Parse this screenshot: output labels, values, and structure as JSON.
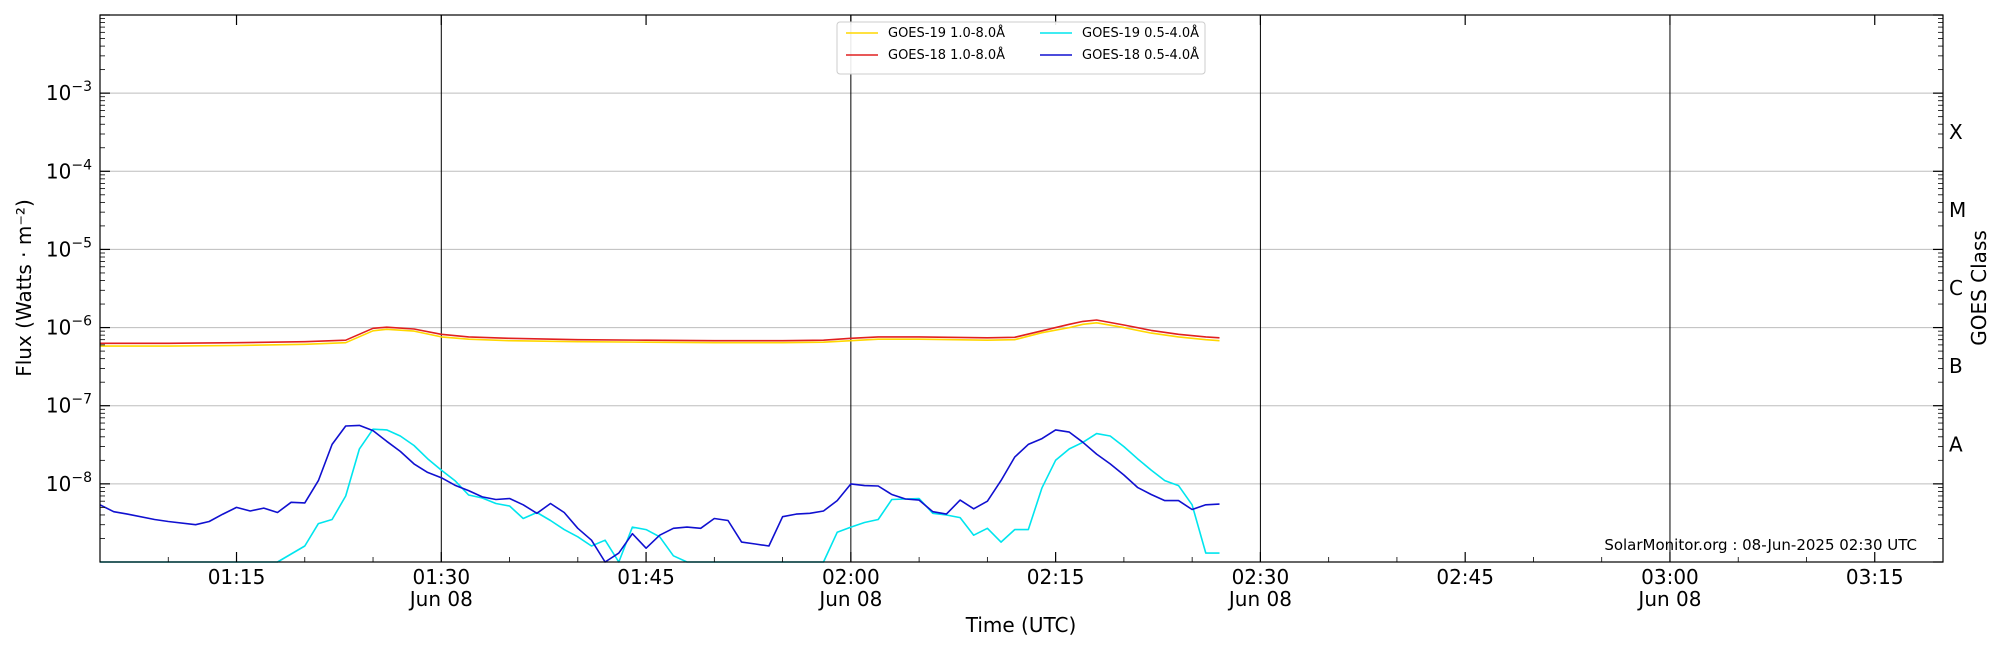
{
  "chart_data": {
    "type": "line",
    "xlabel": "Time (UTC)",
    "ylabel": "Flux (Watts · m⁻²)",
    "y2label": "GOES Class",
    "yscale": "log",
    "xlim": [
      "01:05",
      "03:20"
    ],
    "ylim": [
      1e-09,
      0.01
    ],
    "grid": "horizontal",
    "legend_position": "top-center",
    "x_ticks": [
      {
        "time": "01:15",
        "label": "01:15",
        "sub": ""
      },
      {
        "time": "01:30",
        "label": "01:30",
        "sub": "Jun 08"
      },
      {
        "time": "01:45",
        "label": "01:45",
        "sub": ""
      },
      {
        "time": "02:00",
        "label": "02:00",
        "sub": "Jun 08"
      },
      {
        "time": "02:15",
        "label": "02:15",
        "sub": ""
      },
      {
        "time": "02:30",
        "label": "02:30",
        "sub": "Jun 08"
      },
      {
        "time": "02:45",
        "label": "02:45",
        "sub": ""
      },
      {
        "time": "03:00",
        "label": "03:00",
        "sub": "Jun 08"
      },
      {
        "time": "03:15",
        "label": "03:15",
        "sub": ""
      }
    ],
    "vertical_lines": [
      "01:30",
      "02:00",
      "02:30",
      "03:00"
    ],
    "y_ticks": [
      {
        "value": 0.001,
        "base": "10",
        "exp": "−3"
      },
      {
        "value": 0.0001,
        "base": "10",
        "exp": "−4"
      },
      {
        "value": 1e-05,
        "base": "10",
        "exp": "−5"
      },
      {
        "value": 1e-06,
        "base": "10",
        "exp": "−6"
      },
      {
        "value": 1e-07,
        "base": "10",
        "exp": "−7"
      },
      {
        "value": 1e-08,
        "base": "10",
        "exp": "−8"
      }
    ],
    "goes_classes": [
      {
        "label": "X",
        "value": 0.00032
      },
      {
        "label": "M",
        "value": 3.2e-05
      },
      {
        "label": "C",
        "value": 3.2e-06
      },
      {
        "label": "B",
        "value": 3.2e-07
      },
      {
        "label": "A",
        "value": 3.2e-08
      }
    ],
    "series": [
      {
        "name": "GOES-19 1.0-8.0Å",
        "color": "#FFD700",
        "x": [
          "01:05",
          "01:10",
          "01:15",
          "01:20",
          "01:23",
          "01:25",
          "01:26",
          "01:28",
          "01:30",
          "01:32",
          "01:35",
          "01:40",
          "01:45",
          "01:50",
          "01:55",
          "01:58",
          "02:00",
          "02:02",
          "02:05",
          "02:10",
          "02:12",
          "02:14",
          "02:16",
          "02:17",
          "02:18",
          "02:20",
          "02:22",
          "02:24",
          "02:26",
          "02:27"
        ],
        "values": [
          5.8e-07,
          5.8e-07,
          5.9e-07,
          6.1e-07,
          6.4e-07,
          9.1e-07,
          9.5e-07,
          9e-07,
          7.6e-07,
          7.1e-07,
          6.8e-07,
          6.6e-07,
          6.5e-07,
          6.4e-07,
          6.4e-07,
          6.5e-07,
          6.8e-07,
          7.1e-07,
          7.1e-07,
          6.9e-07,
          7e-07,
          8.6e-07,
          1e-06,
          1.1e-06,
          1.15e-06,
          1e-06,
          8.5e-07,
          7.6e-07,
          7e-07,
          6.8e-07
        ]
      },
      {
        "name": "GOES-18 1.0-8.0Å",
        "color": "#E02020",
        "x": [
          "01:05",
          "01:10",
          "01:15",
          "01:20",
          "01:23",
          "01:25",
          "01:26",
          "01:28",
          "01:30",
          "01:32",
          "01:35",
          "01:40",
          "01:45",
          "01:50",
          "01:55",
          "01:58",
          "02:00",
          "02:02",
          "02:05",
          "02:10",
          "02:12",
          "02:14",
          "02:16",
          "02:17",
          "02:18",
          "02:20",
          "02:22",
          "02:24",
          "02:26",
          "02:27"
        ],
        "values": [
          6.3e-07,
          6.3e-07,
          6.4e-07,
          6.6e-07,
          6.9e-07,
          9.8e-07,
          1.01e-06,
          9.6e-07,
          8.2e-07,
          7.6e-07,
          7.3e-07,
          7e-07,
          6.9e-07,
          6.8e-07,
          6.8e-07,
          6.9e-07,
          7.3e-07,
          7.6e-07,
          7.6e-07,
          7.4e-07,
          7.5e-07,
          9.1e-07,
          1.1e-06,
          1.2e-06,
          1.25e-06,
          1.08e-06,
          9.2e-07,
          8.2e-07,
          7.6e-07,
          7.4e-07
        ]
      },
      {
        "name": "GOES-19 0.5-4.0Å",
        "color": "#00E5EE",
        "x": [
          "01:05",
          "01:10",
          "01:15",
          "01:18",
          "01:20",
          "01:21",
          "01:22",
          "01:23",
          "01:24",
          "01:25",
          "01:26",
          "01:27",
          "01:28",
          "01:29",
          "01:30",
          "01:31",
          "01:32",
          "01:33",
          "01:34",
          "01:35",
          "01:36",
          "01:37",
          "01:38",
          "01:39",
          "01:40",
          "01:41",
          "01:42",
          "01:43",
          "01:44",
          "01:45",
          "01:46",
          "01:47",
          "01:48",
          "01:49",
          "01:50",
          "01:55",
          "01:58",
          "01:59",
          "02:00",
          "02:01",
          "02:02",
          "02:03",
          "02:04",
          "02:05",
          "02:06",
          "02:07",
          "02:08",
          "02:09",
          "02:10",
          "02:11",
          "02:12",
          "02:13",
          "02:14",
          "02:15",
          "02:16",
          "02:17",
          "02:18",
          "02:19",
          "02:20",
          "02:21",
          "02:22",
          "02:23",
          "02:24",
          "02:25",
          "02:26",
          "02:27"
        ],
        "values": [
          1e-09,
          1e-09,
          1e-09,
          1e-09,
          1.6e-09,
          3.1e-09,
          3.5e-09,
          7e-09,
          2.8e-08,
          5e-08,
          4.9e-08,
          4.1e-08,
          3.1e-08,
          2.1e-08,
          1.5e-08,
          1.1e-08,
          7.2e-09,
          6.6e-09,
          5.6e-09,
          5.2e-09,
          3.6e-09,
          4.3e-09,
          3.4e-09,
          2.6e-09,
          2.1e-09,
          1.6e-09,
          1.9e-09,
          1e-09,
          2.8e-09,
          2.6e-09,
          2.1e-09,
          1.2e-09,
          1e-09,
          1e-09,
          1e-09,
          1e-09,
          1e-09,
          2.4e-09,
          2.8e-09,
          3.2e-09,
          3.5e-09,
          6.3e-09,
          6.4e-09,
          6.5e-09,
          4.2e-09,
          4e-09,
          3.7e-09,
          2.2e-09,
          2.7e-09,
          1.8e-09,
          2.6e-09,
          2.6e-09,
          8.9e-09,
          2e-08,
          2.8e-08,
          3.4e-08,
          4.4e-08,
          4.1e-08,
          3e-08,
          2.1e-08,
          1.5e-08,
          1.1e-08,
          9.5e-09,
          5.4e-09,
          1.3e-09,
          1.3e-09
        ]
      },
      {
        "name": "GOES-18 0.5-4.0Å",
        "color": "#1010D0",
        "x": [
          "01:05",
          "01:06",
          "01:07",
          "01:09",
          "01:10",
          "01:12",
          "01:13",
          "01:14",
          "01:15",
          "01:16",
          "01:17",
          "01:18",
          "01:19",
          "01:20",
          "01:21",
          "01:22",
          "01:23",
          "01:24",
          "01:25",
          "01:26",
          "01:27",
          "01:28",
          "01:29",
          "01:30",
          "01:31",
          "01:32",
          "01:33",
          "01:34",
          "01:35",
          "01:36",
          "01:37",
          "01:38",
          "01:39",
          "01:40",
          "01:41",
          "01:42",
          "01:43",
          "01:44",
          "01:45",
          "01:46",
          "01:47",
          "01:48",
          "01:49",
          "01:50",
          "01:51",
          "01:52",
          "01:53",
          "01:54",
          "01:55",
          "01:56",
          "01:57",
          "01:58",
          "01:59",
          "02:00",
          "02:01",
          "02:02",
          "02:03",
          "02:04",
          "02:05",
          "02:06",
          "02:07",
          "02:08",
          "02:09",
          "02:10",
          "02:11",
          "02:12",
          "02:13",
          "02:14",
          "02:15",
          "02:16",
          "02:17",
          "02:18",
          "02:19",
          "02:20",
          "02:21",
          "02:22",
          "02:23",
          "02:24",
          "02:25",
          "02:26",
          "02:27"
        ],
        "values": [
          5.4e-09,
          4.4e-09,
          4.1e-09,
          3.5e-09,
          3.3e-09,
          3e-09,
          3.3e-09,
          4.1e-09,
          5e-09,
          4.5e-09,
          4.9e-09,
          4.3e-09,
          5.8e-09,
          5.7e-09,
          1.1e-08,
          3.2e-08,
          5.5e-08,
          5.6e-08,
          4.8e-08,
          3.5e-08,
          2.6e-08,
          1.8e-08,
          1.4e-08,
          1.2e-08,
          9.6e-09,
          8.2e-09,
          6.8e-09,
          6.3e-09,
          6.5e-09,
          5.4e-09,
          4.2e-09,
          5.6e-09,
          4.3e-09,
          2.7e-09,
          1.9e-09,
          1e-09,
          1.3e-09,
          2.3e-09,
          1.5e-09,
          2.2e-09,
          2.7e-09,
          2.8e-09,
          2.7e-09,
          3.6e-09,
          3.4e-09,
          1.8e-09,
          1.7e-09,
          1.6e-09,
          3.8e-09,
          4.1e-09,
          4.2e-09,
          4.5e-09,
          6.1e-09,
          1e-08,
          9.5e-09,
          9.4e-09,
          7.3e-09,
          6.4e-09,
          6.2e-09,
          4.4e-09,
          4.1e-09,
          6.2e-09,
          4.8e-09,
          6e-09,
          1.1e-08,
          2.2e-08,
          3.2e-08,
          3.8e-08,
          4.9e-08,
          4.6e-08,
          3.4e-08,
          2.4e-08,
          1.8e-08,
          1.3e-08,
          9e-09,
          7.3e-09,
          6.1e-09,
          6.1e-09,
          4.7e-09,
          5.4e-09,
          5.5e-09
        ]
      }
    ],
    "annotation": "SolarMonitor.org : 08-Jun-2025 02:30 UTC"
  }
}
